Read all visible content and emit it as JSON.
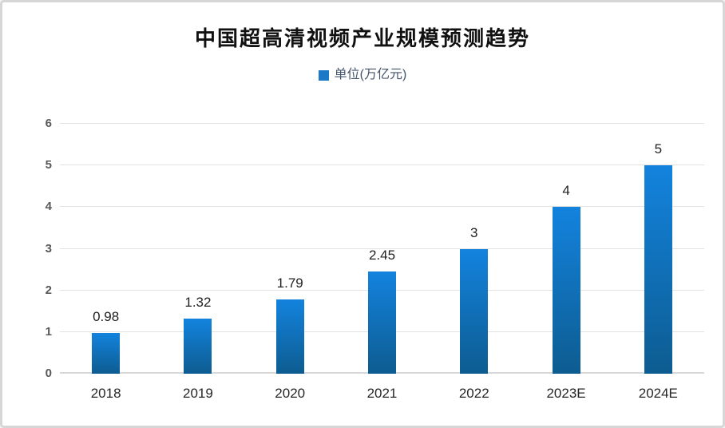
{
  "frame": {
    "background": "#ffffff",
    "border_color": "#d6d6d6"
  },
  "chart_data": {
    "type": "bar",
    "title": "中国超高清视频产业规模预测趋势",
    "legend": {
      "label": "单位(万亿元)",
      "marker_color": "#1b79c8",
      "position": "top-center"
    },
    "categories": [
      "2018",
      "2019",
      "2020",
      "2021",
      "2022",
      "2023E",
      "2024E"
    ],
    "values": [
      0.98,
      1.32,
      1.79,
      2.45,
      3,
      4,
      5
    ],
    "value_labels": [
      "0.98",
      "1.32",
      "1.79",
      "2.45",
      "3",
      "4",
      "5"
    ],
    "xlabel": "",
    "ylabel": "",
    "ylim": [
      0,
      6
    ],
    "yticks": [
      0,
      1,
      2,
      3,
      4,
      5,
      6
    ],
    "grid": true,
    "colors": {
      "bar_gradient_top": "#1383de",
      "bar_gradient_bottom": "#0d5c90",
      "gridline": "#e2e2e2",
      "axis_line": "#d9d9d9",
      "title_text": "#111111",
      "y_tick_text": "#595959",
      "x_tick_text": "#262626",
      "value_label_text": "#1f1f1f",
      "legend_text": "#44546a"
    }
  }
}
